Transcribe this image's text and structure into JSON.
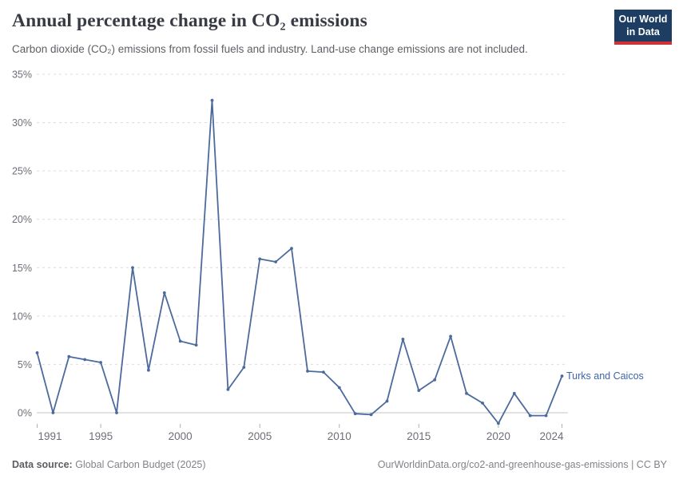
{
  "header": {
    "title": "Annual percentage change in CO₂ emissions",
    "subtitle": "Carbon dioxide (CO₂) emissions from fossil fuels and industry. Land-use change emissions are not included."
  },
  "logo": {
    "line1": "Our World",
    "line2": "in Data",
    "bg_color": "#1d3d63",
    "accent_color": "#d13239"
  },
  "chart_data": {
    "type": "line",
    "title": "Annual percentage change in CO₂ emissions",
    "xlabel": "",
    "ylabel": "",
    "x": [
      1991,
      1992,
      1993,
      1994,
      1995,
      1996,
      1997,
      1998,
      1999,
      2000,
      2001,
      2002,
      2003,
      2004,
      2005,
      2006,
      2007,
      2008,
      2009,
      2010,
      2011,
      2012,
      2013,
      2014,
      2015,
      2016,
      2017,
      2018,
      2019,
      2020,
      2021,
      2022,
      2023,
      2024
    ],
    "series": [
      {
        "name": "Turks and Caicos",
        "values": [
          6.2,
          0.0,
          5.8,
          5.5,
          5.2,
          0.0,
          15.0,
          4.4,
          12.4,
          7.4,
          7.0,
          32.3,
          2.4,
          4.7,
          15.9,
          15.6,
          17.0,
          4.3,
          4.2,
          2.6,
          -0.1,
          -0.2,
          1.2,
          7.6,
          2.3,
          3.4,
          7.9,
          2.0,
          1.0,
          -1.1,
          2.0,
          -0.3,
          -0.3,
          3.8
        ]
      }
    ],
    "xticks": [
      1991,
      1995,
      2000,
      2005,
      2010,
      2015,
      2020,
      2024
    ],
    "yticks": [
      0,
      5,
      10,
      15,
      20,
      25,
      30,
      35
    ],
    "ytick_suffix": "%",
    "xlim": [
      1991,
      2024
    ],
    "ylim": [
      -1.5,
      35
    ],
    "grid": "horizontal-dashed",
    "legend_position": "end-of-line-label",
    "line_color": "#4c6a9c",
    "marker_color": "#4c6a9c",
    "label_color": "#3d64a8",
    "grid_color": "#dcdcdc",
    "zero_line_color": "#c4c4c4",
    "tick_color": "#b0b0b0",
    "axis_text_color": "#6e6e78"
  },
  "footer": {
    "source_label": "Data source:",
    "source_value": "Global Carbon Budget (2025)",
    "attribution": "OurWorldinData.org/co2-and-greenhouse-gas-emissions | CC BY"
  }
}
